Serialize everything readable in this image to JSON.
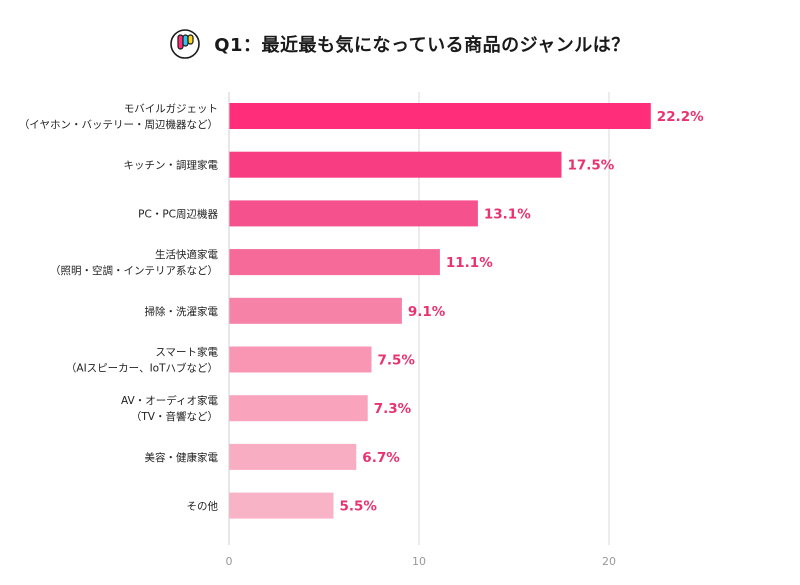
{
  "header": {
    "title": "Q1：最近最も気になっている商品のジャンルは？",
    "logo_icon": "brand-logo-icon"
  },
  "colors": {
    "accent": "#e8336f",
    "grid": "#d9d9d9",
    "bars": [
      "#ff2d7a",
      "#f83d82",
      "#f5518c",
      "#f56a98",
      "#f682a8",
      "#f896b4",
      "#f9a3bd",
      "#f9adc3",
      "#f9b3c7"
    ]
  },
  "chart_data": {
    "type": "bar",
    "orientation": "horizontal",
    "categories": [
      [
        "モバイルガジェット",
        "（イヤホン・バッテリー・周辺機器など）"
      ],
      [
        "キッチン・調理家電"
      ],
      [
        "PC・PC周辺機器"
      ],
      [
        "生活快適家電",
        "（照明・空調・インテリア系など）"
      ],
      [
        "掃除・洗濯家電"
      ],
      [
        "スマート家電",
        "（AIスピーカー、IoTハブなど）"
      ],
      [
        "AV・オーディオ家電",
        "（TV・音響など）"
      ],
      [
        "美容・健康家電"
      ],
      [
        "その他"
      ]
    ],
    "values": [
      22.2,
      17.5,
      13.1,
      11.1,
      9.1,
      7.5,
      7.3,
      6.7,
      5.5
    ],
    "value_labels": [
      "22.2%",
      "17.5%",
      "13.1%",
      "11.1%",
      "9.1%",
      "7.5%",
      "7.3%",
      "6.7%",
      "5.5%"
    ],
    "x_ticks": [
      0,
      10,
      20
    ],
    "x_tick_labels": [
      "0",
      "10",
      "20"
    ],
    "xlim": [
      0,
      25
    ],
    "grid": true,
    "xlabel": "",
    "ylabel": ""
  }
}
